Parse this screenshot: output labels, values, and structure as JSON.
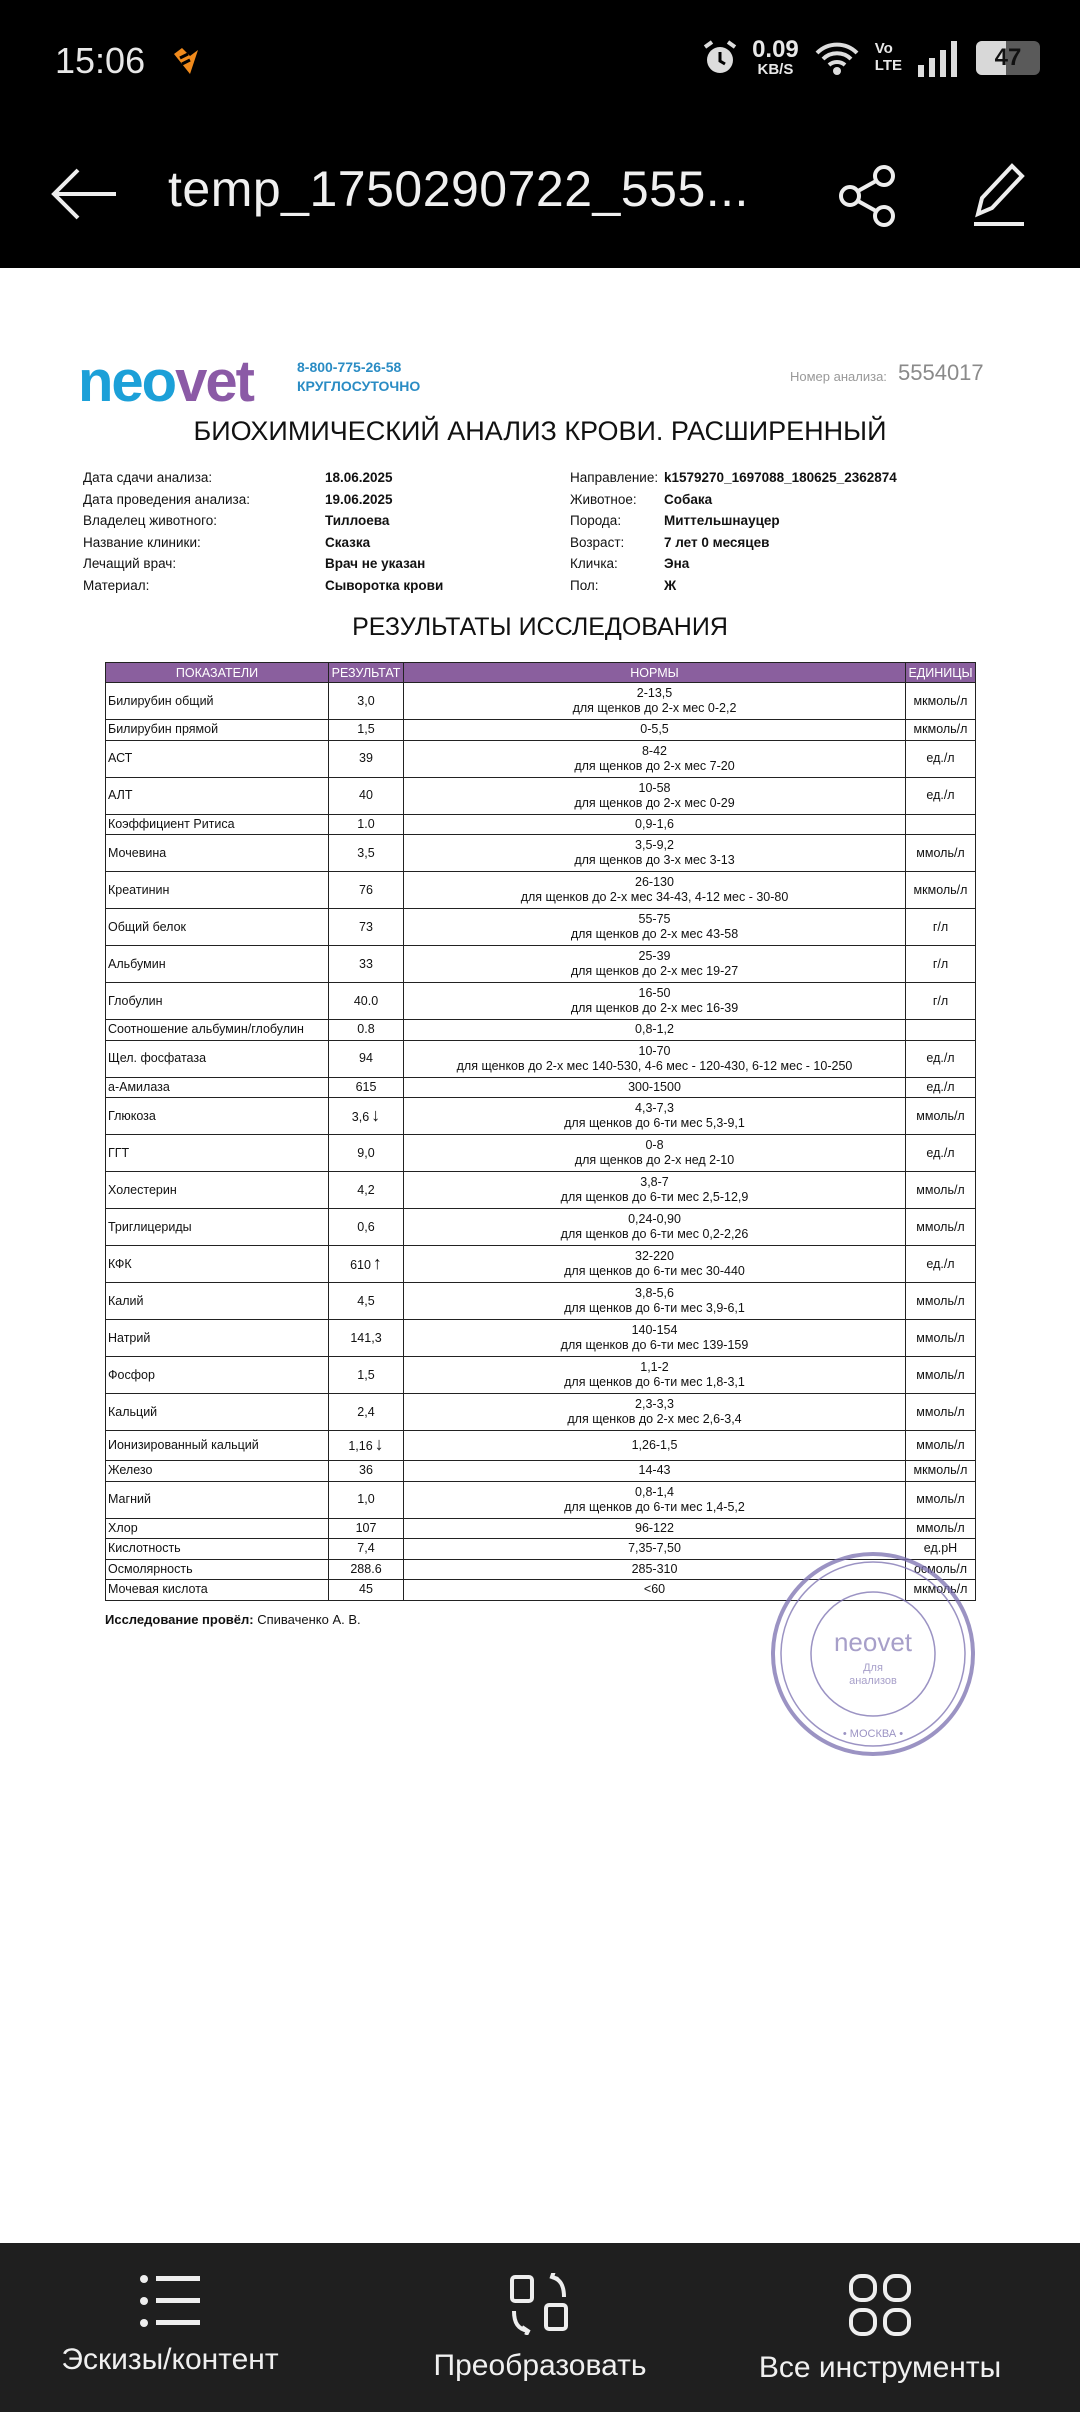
{
  "status_bar": {
    "time": "15:06",
    "net_speed": "0.09",
    "net_unit": "KB/S",
    "volte_top": "Vo",
    "volte_bottom": "LTE",
    "battery": "47",
    "battery_level_percent": 47
  },
  "app_bar": {
    "title": "temp_1750290722_555..."
  },
  "document": {
    "logo": {
      "ne": "neo",
      "vet": "vet"
    },
    "phone": "8-800-775-26-58",
    "hours": "КРУГЛОСУТОЧНО",
    "analysis_number_label": "Номер анализа:",
    "analysis_number": "5554017",
    "title": "БИОХИМИЧЕСКИЙ АНАЛИЗ КРОВИ. РАСШИРЕННЫЙ",
    "info_left": [
      {
        "label": "Дата сдачи анализа:",
        "value": "18.06.2025"
      },
      {
        "label": "Дата проведения анализа:",
        "value": "19.06.2025"
      },
      {
        "label": "Владелец животного:",
        "value": "Тиллоева"
      },
      {
        "label": "Название клиники:",
        "value": "Сказка"
      },
      {
        "label": "Лечащий врач:",
        "value": "Врач не указан"
      },
      {
        "label": "Материал:",
        "value": "Сыворотка крови"
      }
    ],
    "info_right": [
      {
        "label": "Направление:",
        "value": "k1579270_1697088_180625_2362874"
      },
      {
        "label": "Животное:",
        "value": "Собака"
      },
      {
        "label": "Порода:",
        "value": "Миттельшнауцер"
      },
      {
        "label": "Возраст:",
        "value": "7 лет 0 месяцев"
      },
      {
        "label": "Кличка:",
        "value": "Эна"
      },
      {
        "label": "Пол:",
        "value": "Ж"
      }
    ],
    "results_title": "РЕЗУЛЬТАТЫ ИССЛЕДОВАНИЯ",
    "table": {
      "header_color": "#8a5f9e",
      "columns": [
        "ПОКАЗАТЕЛИ",
        "РЕЗУЛЬТАТ",
        "НОРМЫ",
        "ЕДИНИЦЫ"
      ],
      "rows": [
        {
          "name": "Билирубин общий",
          "result": "3,0",
          "norm": "2-13,5",
          "norm_puppy": "для щенков до 2-х мес 0-2,2",
          "unit": "мкмоль/л"
        },
        {
          "name": "Билирубин прямой",
          "result": "1,5",
          "norm": "0-5,5",
          "unit": "мкмоль/л"
        },
        {
          "name": "АСТ",
          "result": "39",
          "norm": "8-42",
          "norm_puppy": "для щенков до 2-х мес 7-20",
          "unit": "ед./л"
        },
        {
          "name": "АЛТ",
          "result": "40",
          "norm": "10-58",
          "norm_puppy": "для щенков до 2-х мес 0-29",
          "unit": "ед./л"
        },
        {
          "name": "Коэффициент Ритиса",
          "result": "1.0",
          "norm": "0,9-1,6",
          "unit": ""
        },
        {
          "name": "Мочевина",
          "result": "3,5",
          "norm": "3,5-9,2",
          "norm_puppy": "для щенков до 3-х мес 3-13",
          "unit": "ммоль/л"
        },
        {
          "name": "Креатинин",
          "result": "76",
          "norm": "26-130",
          "norm_puppy": "для щенков до 2-х мес 34-43, 4-12 мес - 30-80",
          "unit": "мкмоль/л"
        },
        {
          "name": "Общий белок",
          "result": "73",
          "norm": "55-75",
          "norm_puppy": "для щенков до 2-х мес 43-58",
          "unit": "г/л"
        },
        {
          "name": "Альбумин",
          "result": "33",
          "norm": "25-39",
          "norm_puppy": "для щенков до 2-х мес 19-27",
          "unit": "г/л"
        },
        {
          "name": "Глобулин",
          "result": "40.0",
          "norm": "16-50",
          "norm_puppy": "для щенков до 2-х мес 16-39",
          "unit": "г/л"
        },
        {
          "name": "Соотношение альбумин/глобулин",
          "result": "0.8",
          "norm": "0,8-1,2",
          "unit": ""
        },
        {
          "name": "Щел. фосфатаза",
          "result": "94",
          "norm": "10-70",
          "norm_puppy": "для щенков до 2-х мес 140-530, 4-6 мес - 120-430, 6-12 мес - 10-250",
          "unit": "ед./л"
        },
        {
          "name": "а-Амилаза",
          "result": "615",
          "norm": "300-1500",
          "unit": "ед./л"
        },
        {
          "name": "Глюкоза",
          "result": "3,6",
          "flag": "low",
          "norm": "4,3-7,3",
          "norm_puppy": "для щенков до 6-ти мес 5,3-9,1",
          "unit": "ммоль/л"
        },
        {
          "name": "ГГТ",
          "result": "9,0",
          "norm": "0-8",
          "norm_puppy": "для щенков до 2-х нед 2-10",
          "unit": "ед./л"
        },
        {
          "name": "Холестерин",
          "result": "4,2",
          "norm": "3,8-7",
          "norm_puppy": "для щенков до 6-ти мес 2,5-12,9",
          "unit": "ммоль/л"
        },
        {
          "name": "Триглицериды",
          "result": "0,6",
          "norm": "0,24-0,90",
          "norm_puppy": "для щенков до 6-ти мес 0,2-2,26",
          "unit": "ммоль/л"
        },
        {
          "name": "КФК",
          "result": "610",
          "flag": "high",
          "norm": "32-220",
          "norm_puppy": "для щенков до 6-ти мес 30-440",
          "unit": "ед./л"
        },
        {
          "name": "Калий",
          "result": "4,5",
          "norm": "3,8-5,6",
          "norm_puppy": "для щенков до 6-ти мес 3,9-6,1",
          "unit": "ммоль/л"
        },
        {
          "name": "Натрий",
          "result": "141,3",
          "norm": "140-154",
          "norm_puppy": "для щенков до 6-ти мес 139-159",
          "unit": "ммоль/л"
        },
        {
          "name": "Фосфор",
          "result": "1,5",
          "norm": "1,1-2",
          "norm_puppy": "для щенков до 6-ти мес 1,8-3,1",
          "unit": "ммоль/л"
        },
        {
          "name": "Кальций",
          "result": "2,4",
          "norm": "2,3-3,3",
          "norm_puppy": "для щенков до 2-х мес 2,6-3,4",
          "unit": "ммоль/л"
        },
        {
          "name": "Ионизированный кальций",
          "result": "1,16",
          "flag": "low",
          "norm": "1,26-1,5",
          "unit": "ммоль/л"
        },
        {
          "name": "Железо",
          "result": "36",
          "norm": "14-43",
          "unit": "мкмоль/л"
        },
        {
          "name": "Магний",
          "result": "1,0",
          "norm": "0,8-1,4",
          "norm_puppy": "для щенков до 6-ти мес 1,4-5,2",
          "unit": "ммоль/л"
        },
        {
          "name": "Хлор",
          "result": "107",
          "norm": "96-122",
          "unit": "ммоль/л"
        },
        {
          "name": "Кислотность",
          "result": "7,4",
          "norm": "7,35-7,50",
          "unit": "ед.pH"
        },
        {
          "name": "Осмолярность",
          "result": "288.6",
          "norm": "285-310",
          "unit": "осмоль/л"
        },
        {
          "name": "Мочевая кислота",
          "result": "45",
          "norm": "<60",
          "unit": "мкмоль/л"
        }
      ]
    },
    "conducted_label": "Исследование провёл:",
    "conducted_by": "Спиваченко А. В.",
    "stamp": {
      "center": "neovet",
      "sub": "Для анализов",
      "bottom": "МОСКВА",
      "color": "#7a6fb0"
    }
  },
  "bottom_bar": {
    "items": [
      {
        "label": "Эскизы/контент",
        "icon": "list-icon"
      },
      {
        "label": "Преобразовать",
        "icon": "convert-icon"
      },
      {
        "label": "Все инструменты",
        "icon": "grid-icon"
      }
    ]
  }
}
